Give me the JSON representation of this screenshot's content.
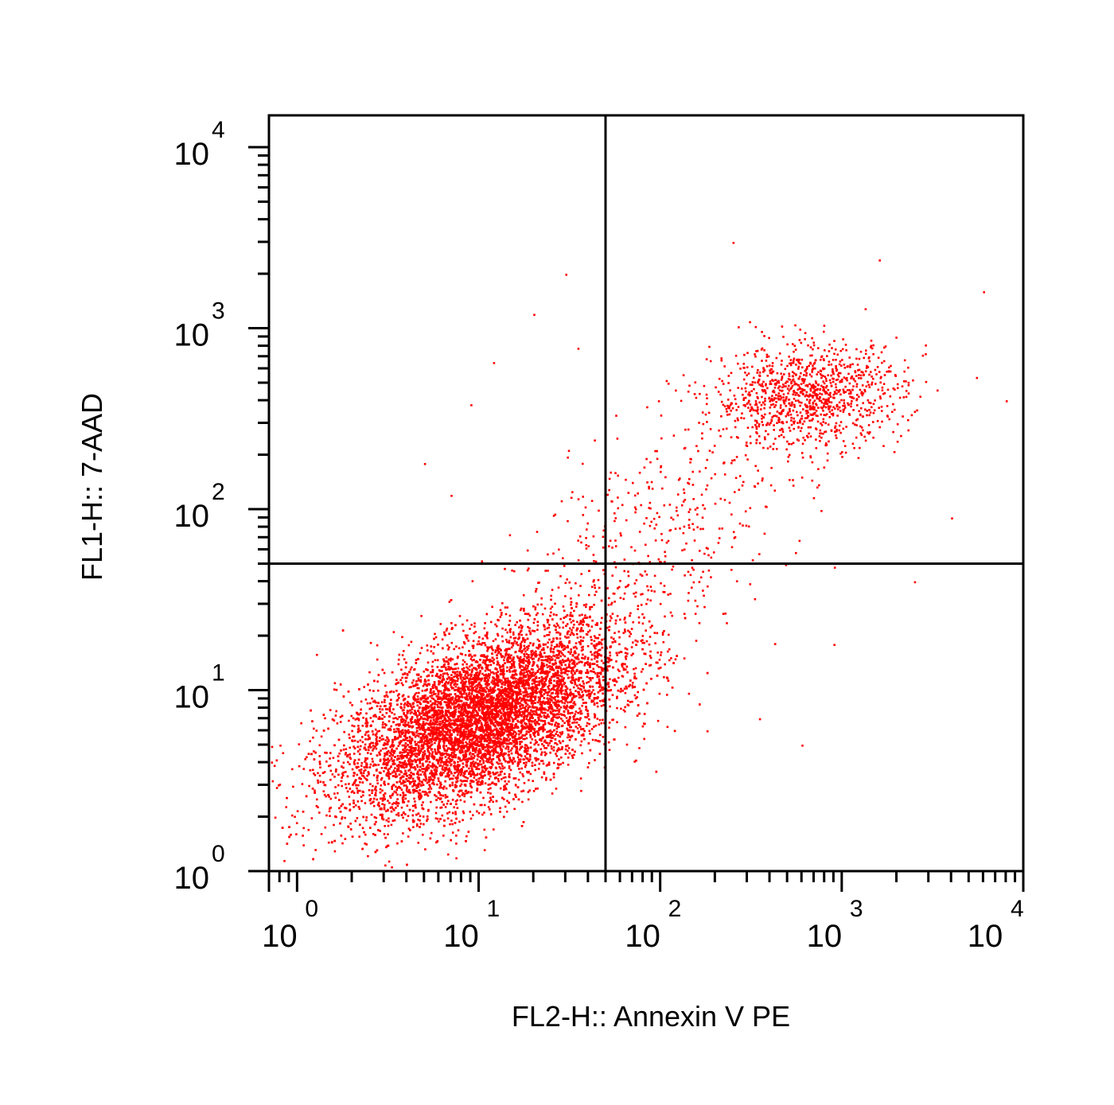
{
  "chart_data": {
    "type": "scatter",
    "title": "",
    "xlabel": "FL2-H:: Annexin V PE",
    "ylabel": "FL1-H:: 7-AAD",
    "x_scale": "log",
    "y_scale": "log",
    "xlim": [
      0.7,
      10000
    ],
    "ylim": [
      1,
      15000
    ],
    "x_ticks": [
      {
        "base": "10",
        "exp": "0",
        "value": 1
      },
      {
        "base": "10",
        "exp": "1",
        "value": 10
      },
      {
        "base": "10",
        "exp": "2",
        "value": 100
      },
      {
        "base": "10",
        "exp": "3",
        "value": 1000
      },
      {
        "base": "10",
        "exp": "4",
        "value": 10000
      }
    ],
    "y_ticks": [
      {
        "base": "10",
        "exp": "0",
        "value": 1
      },
      {
        "base": "10",
        "exp": "1",
        "value": 10
      },
      {
        "base": "10",
        "exp": "2",
        "value": 100
      },
      {
        "base": "10",
        "exp": "3",
        "value": 1000
      },
      {
        "base": "10",
        "exp": "4",
        "value": 10000
      }
    ],
    "quadrant_gate": {
      "x": 50,
      "y": 50
    },
    "grid": false,
    "legend": "none",
    "point_color": "#ff0000",
    "clusters": [
      {
        "center_x": 10,
        "center_y": 7,
        "sd_log_x": 0.38,
        "sd_log_y": 0.26,
        "corr": 0.55,
        "count": 9000
      },
      {
        "center_x": 650,
        "center_y": 430,
        "sd_log_x": 0.26,
        "sd_log_y": 0.14,
        "corr": 0.1,
        "count": 1100
      },
      {
        "center_x": 90,
        "center_y": 60,
        "sd_log_x": 0.42,
        "sd_log_y": 0.42,
        "corr": 0.6,
        "count": 500
      }
    ],
    "outliers": [
      [
        30,
        2000
      ],
      [
        20,
        1200
      ],
      [
        12,
        650
      ],
      [
        9,
        380
      ],
      [
        5,
        180
      ],
      [
        7,
        120
      ],
      [
        35,
        780
      ],
      [
        250,
        3000
      ],
      [
        1600,
        2400
      ],
      [
        6000,
        1600
      ],
      [
        8000,
        400
      ],
      [
        4000,
        90
      ],
      [
        2500,
        40
      ],
      [
        600,
        5
      ],
      [
        350,
        7
      ],
      [
        180,
        6
      ],
      [
        120,
        15
      ],
      [
        0.8,
        5
      ],
      [
        0.75,
        2
      ],
      [
        60,
        8
      ],
      [
        900,
        18
      ]
    ]
  }
}
